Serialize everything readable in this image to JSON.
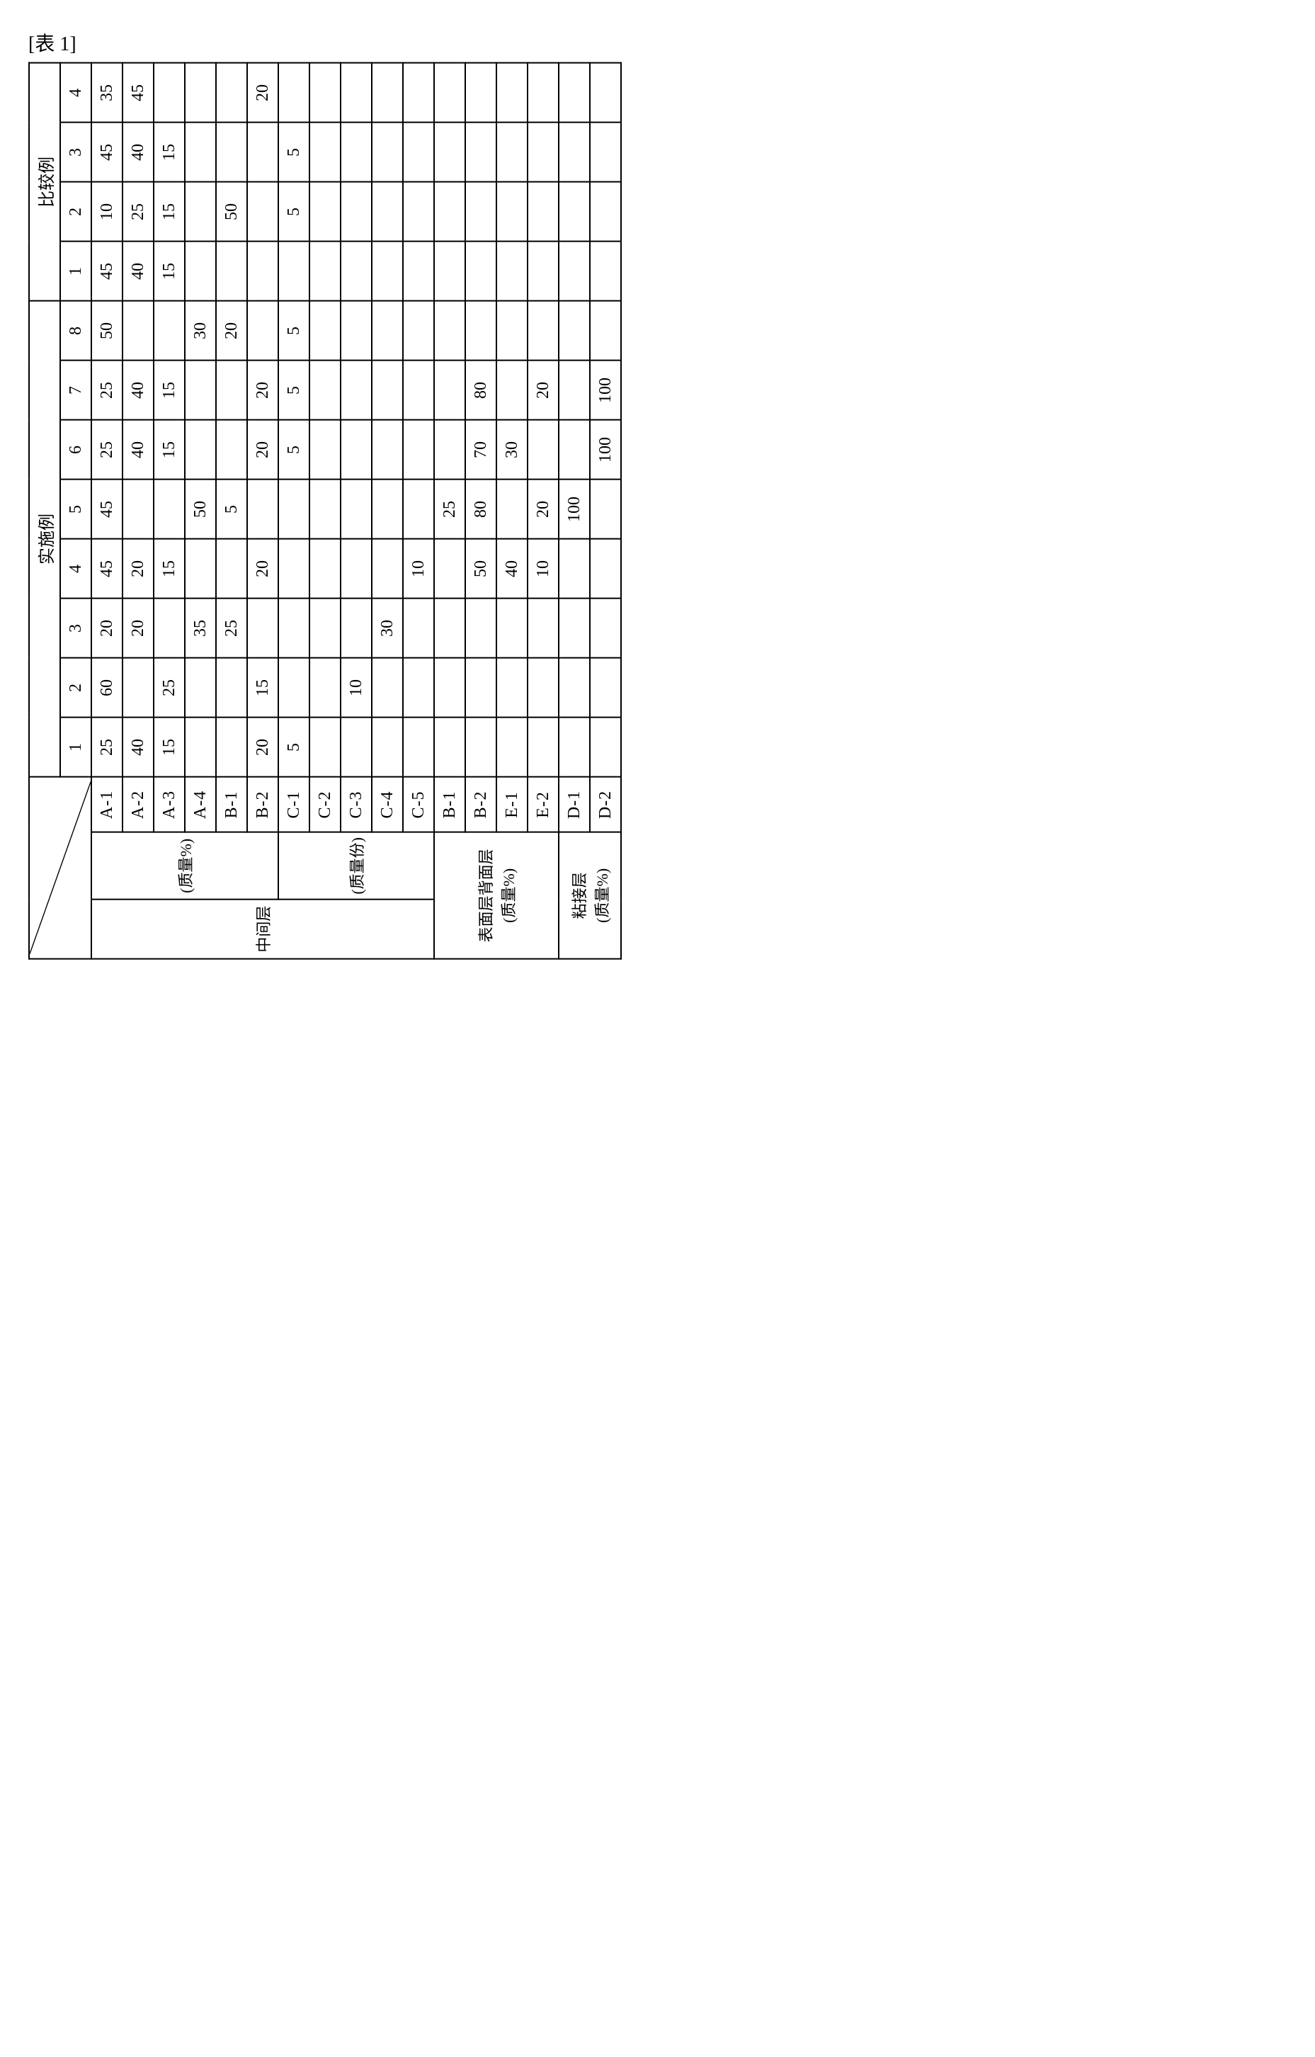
{
  "caption": "[表 1]",
  "group_headers": {
    "examples": "实施例",
    "comparative": "比较例"
  },
  "example_cols": [
    "1",
    "2",
    "3",
    "4",
    "5",
    "6",
    "7",
    "8"
  ],
  "comparative_cols": [
    "1",
    "2",
    "3",
    "4"
  ],
  "row_groups": [
    {
      "label": "中间层",
      "subgroups": [
        {
          "label": "(质量%)",
          "rows": [
            {
              "code": "A-1",
              "ex": [
                "25",
                "60",
                "20",
                "45",
                "45",
                "25",
                "25",
                "50"
              ],
              "cmp": [
                "45",
                "10",
                "45",
                "35"
              ]
            },
            {
              "code": "A-2",
              "ex": [
                "40",
                "",
                "20",
                "20",
                "",
                "40",
                "40",
                ""
              ],
              "cmp": [
                "40",
                "25",
                "40",
                "45"
              ]
            },
            {
              "code": "A-3",
              "ex": [
                "15",
                "25",
                "",
                "15",
                "",
                "15",
                "15",
                ""
              ],
              "cmp": [
                "15",
                "15",
                "15",
                ""
              ]
            },
            {
              "code": "A-4",
              "ex": [
                "",
                "",
                "35",
                "",
                "50",
                "",
                "",
                "30"
              ],
              "cmp": [
                "",
                "",
                "",
                ""
              ]
            },
            {
              "code": "B-1",
              "ex": [
                "",
                "",
                "25",
                "",
                "5",
                "",
                "",
                "20"
              ],
              "cmp": [
                "",
                "50",
                "",
                ""
              ]
            },
            {
              "code": "B-2",
              "ex": [
                "20",
                "15",
                "",
                "20",
                "",
                "20",
                "20",
                ""
              ],
              "cmp": [
                "",
                "",
                "",
                "20"
              ]
            }
          ]
        },
        {
          "label": "(质量份)",
          "rows": [
            {
              "code": "C-1",
              "ex": [
                "5",
                "",
                "",
                "",
                "",
                "5",
                "5",
                "5"
              ],
              "cmp": [
                "",
                "5",
                "5",
                ""
              ]
            },
            {
              "code": "C-2",
              "ex": [
                "",
                "",
                "",
                "",
                "",
                "",
                "",
                ""
              ],
              "cmp": [
                "",
                "",
                "",
                ""
              ]
            },
            {
              "code": "C-3",
              "ex": [
                "",
                "10",
                "",
                "",
                "",
                "",
                "",
                ""
              ],
              "cmp": [
                "",
                "",
                "",
                ""
              ]
            },
            {
              "code": "C-4",
              "ex": [
                "",
                "",
                "30",
                "",
                "",
                "",
                "",
                ""
              ],
              "cmp": [
                "",
                "",
                "",
                ""
              ]
            },
            {
              "code": "C-5",
              "ex": [
                "",
                "",
                "",
                "10",
                "",
                "",
                "",
                ""
              ],
              "cmp": [
                "",
                "",
                "",
                ""
              ]
            }
          ]
        }
      ]
    },
    {
      "label": "表面层背面层\n(质量%)",
      "subgroups": [
        {
          "label": null,
          "rows": [
            {
              "code": "B-1",
              "ex": [
                "",
                "",
                "",
                "",
                "25",
                "",
                "",
                ""
              ],
              "cmp": [
                "",
                "",
                "",
                ""
              ]
            },
            {
              "code": "B-2",
              "ex": [
                "",
                "",
                "",
                "50",
                "80",
                "70",
                "80",
                ""
              ],
              "cmp": [
                "",
                "",
                "",
                ""
              ]
            },
            {
              "code": "E-1",
              "ex": [
                "",
                "",
                "",
                "40",
                "",
                "30",
                "",
                ""
              ],
              "cmp": [
                "",
                "",
                "",
                ""
              ]
            },
            {
              "code": "E-2",
              "ex": [
                "",
                "",
                "",
                "10",
                "20",
                "",
                "20",
                ""
              ],
              "cmp": [
                "",
                "",
                "",
                ""
              ]
            }
          ]
        }
      ]
    },
    {
      "label": "粘接层\n(质量%)",
      "subgroups": [
        {
          "label": null,
          "rows": [
            {
              "code": "D-1",
              "ex": [
                "",
                "",
                "",
                "",
                "100",
                "",
                "",
                ""
              ],
              "cmp": [
                "",
                "",
                "",
                ""
              ]
            },
            {
              "code": "D-2",
              "ex": [
                "",
                "",
                "",
                "",
                "",
                "100",
                "100",
                ""
              ],
              "cmp": [
                "",
                "",
                "",
                ""
              ]
            }
          ]
        }
      ]
    }
  ],
  "style": {
    "border_color": "#000000",
    "background": "#ffffff",
    "cell_fontsize": 24,
    "caption_fontsize": 28
  }
}
